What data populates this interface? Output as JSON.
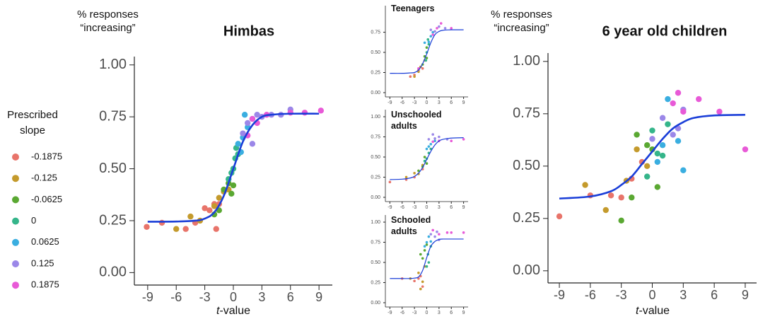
{
  "chart_data": [
    {
      "type": "scatter",
      "title": "Himbas",
      "ylabel": "% responses “increasing”",
      "xlabel": "t-value",
      "legend_title": "Prescribed slope",
      "xlim": [
        -10.4,
        10.4
      ],
      "ylim": [
        -0.06,
        1.04
      ],
      "xticks": [
        -9,
        -6,
        -3,
        0,
        3,
        6,
        9
      ],
      "yticks": [
        {
          "value": 0,
          "label": "0.00"
        },
        0.25,
        {
          "value": 0.5,
          "label": "0.50"
        },
        0.75,
        {
          "value": 1,
          "label": "1.00"
        }
      ],
      "series": [
        {
          "name": "-0.1875",
          "color": "#e8746a",
          "x": [
            -9.1,
            -7.5,
            -5,
            -4,
            -3,
            -2.5,
            -2,
            -1.5,
            -1.8
          ],
          "y": [
            0.22,
            0.24,
            0.21,
            0.24,
            0.31,
            0.3,
            0.33,
            0.33,
            0.21
          ]
        },
        {
          "name": "-0.125",
          "color": "#c49a2c",
          "x": [
            -6,
            -4.5,
            -3.5,
            -2,
            -1.5,
            -1,
            -0.5
          ],
          "y": [
            0.21,
            0.27,
            0.25,
            0.32,
            0.36,
            0.39,
            0.4
          ]
        },
        {
          "name": "-0.0625",
          "color": "#5aa832",
          "x": [
            -2,
            -1.5,
            -1,
            -0.5,
            -0.2,
            0
          ],
          "y": [
            0.28,
            0.3,
            0.4,
            0.43,
            0.38,
            0.42
          ]
        },
        {
          "name": "0",
          "color": "#35b58a",
          "x": [
            -0.5,
            0,
            0.2,
            0.5,
            -0.2,
            0.3
          ],
          "y": [
            0.45,
            0.5,
            0.55,
            0.57,
            0.48,
            0.6
          ]
        },
        {
          "name": "0.0625",
          "color": "#3aaee0",
          "x": [
            0.5,
            1,
            1.2,
            1.5,
            2,
            0.8
          ],
          "y": [
            0.62,
            0.65,
            0.76,
            0.7,
            0.74,
            0.58
          ]
        },
        {
          "name": "0.125",
          "color": "#9b87e8",
          "x": [
            1,
            1.5,
            2.5,
            3,
            4,
            5,
            6,
            2
          ],
          "y": [
            0.67,
            0.72,
            0.76,
            0.75,
            0.76,
            0.76,
            0.785,
            0.62
          ]
        },
        {
          "name": "0.1875",
          "color": "#e85ad7",
          "x": [
            1.5,
            2,
            2.5,
            3.5,
            6,
            7.5,
            9.2
          ],
          "y": [
            0.66,
            0.74,
            0.72,
            0.76,
            0.77,
            0.77,
            0.78
          ]
        }
      ],
      "fit": {
        "color": "#1a3ed8",
        "x": [
          -9,
          -6,
          -4,
          -3,
          -2,
          -1,
          0,
          1,
          2,
          3,
          4,
          6,
          9
        ],
        "y": [
          0.245,
          0.246,
          0.25,
          0.26,
          0.29,
          0.37,
          0.5,
          0.63,
          0.71,
          0.75,
          0.76,
          0.765,
          0.765
        ]
      }
    },
    {
      "type": "scatter",
      "title": "Teenagers",
      "xlim": [
        -10.1,
        10.1
      ],
      "ylim": [
        -0.053,
        1.08
      ],
      "xticks": [
        -9,
        -6,
        -3,
        0,
        3,
        6,
        9
      ],
      "yticks": [
        {
          "value": 0,
          "label": "0.00"
        },
        0.25,
        {
          "value": 0.5,
          "label": "0.50"
        },
        0.75
      ],
      "series": [
        {
          "color": "#e8746a",
          "x": [
            -4,
            -2,
            -1,
            -3
          ],
          "y": [
            0.2,
            0.28,
            0.3,
            0.22
          ]
        },
        {
          "color": "#c49a2c",
          "x": [
            -3,
            -1.5,
            -0.5,
            -2
          ],
          "y": [
            0.2,
            0.32,
            0.4,
            0.26
          ]
        },
        {
          "color": "#5aa832",
          "x": [
            -1,
            0,
            -0.5,
            0
          ],
          "y": [
            0.35,
            0.43,
            0.45,
            0.56
          ]
        },
        {
          "color": "#35b58a",
          "x": [
            0,
            0.5,
            0.3,
            -0.2
          ],
          "y": [
            0.5,
            0.6,
            0.66,
            0.4
          ]
        },
        {
          "color": "#3aaee0",
          "x": [
            0.5,
            1,
            1.5,
            -0.5
          ],
          "y": [
            0.63,
            0.7,
            0.75,
            0.62
          ]
        },
        {
          "color": "#9b87e8",
          "x": [
            1,
            2,
            3,
            4.5
          ],
          "y": [
            0.78,
            0.76,
            0.82,
            0.8
          ]
        },
        {
          "color": "#e85ad7",
          "x": [
            1.5,
            2.5,
            3.5,
            6,
            -2
          ],
          "y": [
            0.72,
            0.8,
            0.86,
            0.8,
            0.3
          ]
        }
      ],
      "fit": {
        "color": "#1a3ed8",
        "x": [
          -9,
          -6,
          -4,
          -3,
          -2,
          -1,
          0,
          1,
          2,
          3,
          4,
          6,
          9
        ],
        "y": [
          0.24,
          0.24,
          0.245,
          0.25,
          0.28,
          0.36,
          0.48,
          0.62,
          0.72,
          0.76,
          0.775,
          0.78,
          0.78
        ]
      }
    },
    {
      "type": "scatter",
      "title": "Unschooled adults",
      "xlim": [
        -10.1,
        10.1
      ],
      "ylim": [
        -0.053,
        1.088
      ],
      "xticks": [
        -9,
        -6,
        -3,
        0,
        3,
        6,
        9
      ],
      "yticks": [
        {
          "value": 0,
          "label": "0.00"
        },
        0.25,
        {
          "value": 0.5,
          "label": "0.50"
        },
        0.75,
        {
          "value": 1,
          "label": "1.00"
        }
      ],
      "series": [
        {
          "color": "#e8746a",
          "x": [
            -9,
            -5,
            -3,
            -1
          ],
          "y": [
            0.19,
            0.22,
            0.25,
            0.35
          ]
        },
        {
          "color": "#c49a2c",
          "x": [
            -5,
            -3,
            -2,
            -1
          ],
          "y": [
            0.25,
            0.3,
            0.29,
            0.4
          ]
        },
        {
          "color": "#5aa832",
          "x": [
            -2,
            -1,
            0,
            -0.5
          ],
          "y": [
            0.33,
            0.38,
            0.42,
            0.5
          ]
        },
        {
          "color": "#35b58a",
          "x": [
            0,
            0.5,
            1,
            -0.5
          ],
          "y": [
            0.48,
            0.55,
            0.6,
            0.45
          ]
        },
        {
          "color": "#3aaee0",
          "x": [
            0,
            1,
            2,
            0.5
          ],
          "y": [
            0.6,
            0.66,
            0.7,
            0.63
          ]
        },
        {
          "color": "#9b87e8",
          "x": [
            0.5,
            1.5,
            2,
            3,
            5
          ],
          "y": [
            0.72,
            0.78,
            0.73,
            0.75,
            0.72
          ]
        },
        {
          "color": "#e85ad7",
          "x": [
            1.5,
            3,
            6,
            9
          ],
          "y": [
            0.69,
            0.7,
            0.7,
            0.72
          ]
        }
      ],
      "fit": {
        "color": "#1a3ed8",
        "x": [
          -9,
          -6,
          -4,
          -3,
          -2,
          -1,
          0,
          1,
          2,
          3,
          4,
          6,
          9
        ],
        "y": [
          0.22,
          0.225,
          0.24,
          0.26,
          0.3,
          0.37,
          0.47,
          0.57,
          0.65,
          0.7,
          0.72,
          0.735,
          0.74
        ]
      }
    },
    {
      "type": "scatter",
      "title": "Schooled adults",
      "xlim": [
        -10.1,
        10.1
      ],
      "ylim": [
        -0.053,
        1.088
      ],
      "xticks": [
        -9,
        -6,
        -3,
        0,
        3,
        6,
        9
      ],
      "yticks": [
        {
          "value": 0,
          "label": "0.00"
        },
        0.25,
        {
          "value": 0.5,
          "label": "0.50"
        },
        0.75,
        {
          "value": 1,
          "label": "1.00"
        }
      ],
      "series": [
        {
          "color": "#e8746a",
          "x": [
            -6,
            -3,
            -2,
            -1,
            -1.5
          ],
          "y": [
            0.3,
            0.27,
            0.3,
            0.2,
            0.33
          ]
        },
        {
          "color": "#c49a2c",
          "x": [
            -4,
            -2,
            -1,
            -0.5,
            -1.5
          ],
          "y": [
            0.3,
            0.37,
            0.26,
            0.45,
            0.17
          ]
        },
        {
          "color": "#5aa832",
          "x": [
            -1,
            -0.5,
            0,
            -1.5
          ],
          "y": [
            0.55,
            0.65,
            0.72,
            0.6
          ]
        },
        {
          "color": "#35b58a",
          "x": [
            0,
            0.5,
            0.3,
            1
          ],
          "y": [
            0.45,
            0.5,
            0.6,
            0.7
          ]
        },
        {
          "color": "#3aaee0",
          "x": [
            0,
            0.5,
            1,
            -0.5
          ],
          "y": [
            0.75,
            0.82,
            0.76,
            0.7
          ]
        },
        {
          "color": "#9b87e8",
          "x": [
            1,
            2,
            3,
            2.5
          ],
          "y": [
            0.85,
            0.82,
            0.78,
            0.88
          ]
        },
        {
          "color": "#e85ad7",
          "x": [
            1.5,
            3,
            5,
            6,
            9
          ],
          "y": [
            0.9,
            0.85,
            0.87,
            0.87,
            0.87
          ]
        }
      ],
      "fit": {
        "color": "#1a3ed8",
        "x": [
          -9,
          -6,
          -4,
          -3,
          -2,
          -1,
          0,
          1,
          2,
          3,
          4,
          6,
          9
        ],
        "y": [
          0.3,
          0.3,
          0.3,
          0.305,
          0.32,
          0.4,
          0.56,
          0.7,
          0.76,
          0.785,
          0.79,
          0.79,
          0.79
        ]
      }
    },
    {
      "type": "scatter",
      "title": "6 year old children",
      "ylabel": "% responses “increasing”",
      "xlabel": "t-value",
      "xlim": [
        -10.1,
        10.1
      ],
      "ylim": [
        -0.058,
        1.04
      ],
      "xticks": [
        -9,
        -6,
        -3,
        0,
        3,
        6,
        9
      ],
      "yticks": [
        {
          "value": 0,
          "label": "0.00"
        },
        0.25,
        {
          "value": 0.5,
          "label": "0.50"
        },
        0.75,
        {
          "value": 1,
          "label": "1.00"
        }
      ],
      "series": [
        {
          "color": "#e8746a",
          "x": [
            -9,
            -6,
            -4,
            -3,
            -2,
            -1
          ],
          "y": [
            0.26,
            0.36,
            0.36,
            0.35,
            0.44,
            0.52
          ]
        },
        {
          "color": "#c49a2c",
          "x": [
            -6.5,
            -4.5,
            -2.5,
            -1.5,
            -0.5
          ],
          "y": [
            0.41,
            0.29,
            0.43,
            0.58,
            0.5
          ]
        },
        {
          "color": "#5aa832",
          "x": [
            -3,
            -2,
            -1.5,
            -0.5,
            0,
            0.5
          ],
          "y": [
            0.24,
            0.35,
            0.65,
            0.6,
            0.58,
            0.4
          ]
        },
        {
          "color": "#35b58a",
          "x": [
            0,
            0.5,
            1,
            -0.5,
            1.5
          ],
          "y": [
            0.67,
            0.56,
            0.55,
            0.45,
            0.7
          ]
        },
        {
          "color": "#3aaee0",
          "x": [
            0.5,
            1,
            1.5,
            2.5,
            3
          ],
          "y": [
            0.52,
            0.6,
            0.82,
            0.62,
            0.48
          ]
        },
        {
          "color": "#9b87e8",
          "x": [
            0,
            1,
            2,
            3,
            2.5
          ],
          "y": [
            0.63,
            0.73,
            0.65,
            0.77,
            0.68
          ]
        },
        {
          "color": "#e85ad7",
          "x": [
            2,
            2.5,
            3,
            4.5,
            6.5,
            9
          ],
          "y": [
            0.8,
            0.85,
            0.76,
            0.82,
            0.76,
            0.58
          ]
        }
      ],
      "fit": {
        "color": "#1a3ed8",
        "x": [
          -9,
          -6,
          -4,
          -3,
          -2,
          -1,
          0,
          1,
          2,
          3,
          4,
          6,
          9
        ],
        "y": [
          0.345,
          0.355,
          0.38,
          0.41,
          0.45,
          0.51,
          0.57,
          0.63,
          0.68,
          0.71,
          0.73,
          0.742,
          0.745
        ]
      }
    }
  ]
}
